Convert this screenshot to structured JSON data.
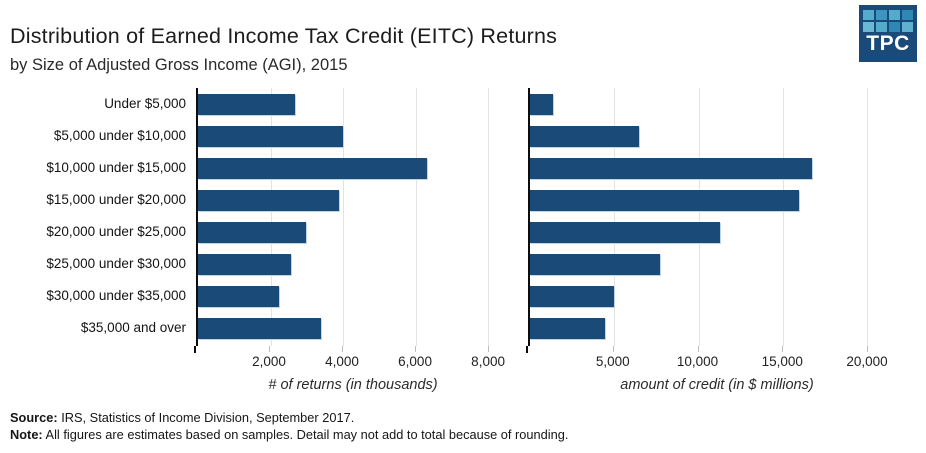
{
  "header": {
    "title": "Distribution of Earned Income Tax Credit (EITC) Returns",
    "subtitle": "by Size of Adjusted Gross Income (AGI), 2015"
  },
  "logo": {
    "text": "TPC",
    "bg_color": "#1a4a7a",
    "tile_colors": [
      "#55abcc",
      "#3d95c0",
      "#55abcc",
      "#2f87b4",
      "#6cb8d3",
      "#55abcc",
      "#2f87b4",
      "#60b0cf"
    ]
  },
  "chart_data": {
    "type": "bar",
    "orientation": "horizontal",
    "grid": true,
    "legend": false,
    "bar_color": "#1a4a78",
    "categories": [
      "Under $5,000",
      "$5,000 under $10,000",
      "$10,000 under $15,000",
      "$15,000 under $20,000",
      "$20,000 under $25,000",
      "$25,000 under $30,000",
      "$30,000 under $35,000",
      "$35,000 and over"
    ],
    "charts": [
      {
        "xlabel": "# of returns (in thousands)",
        "xmax": 8600,
        "ticks": [
          2000,
          4000,
          6000,
          8000
        ],
        "tick_labels": [
          "2,000",
          "4,000",
          "6,000",
          "8,000"
        ],
        "values": [
          2670,
          4000,
          6320,
          3890,
          2970,
          2570,
          2230,
          3380
        ]
      },
      {
        "xlabel": "amount of credit (in $ millions)",
        "xmax": 22300,
        "ticks": [
          5000,
          10000,
          15000,
          20000
        ],
        "tick_labels": [
          "5,000",
          "10,000",
          "15,000",
          "20,000"
        ],
        "values": [
          1370,
          6480,
          16730,
          15960,
          11240,
          7720,
          4960,
          4450
        ]
      }
    ]
  },
  "footer": {
    "source_label": "Source:",
    "source_text": " IRS, Statistics of Income Division, September 2017.",
    "note_label": "Note:",
    "note_text": " All figures are estimates based on samples. Detail may not add to total because of rounding."
  }
}
